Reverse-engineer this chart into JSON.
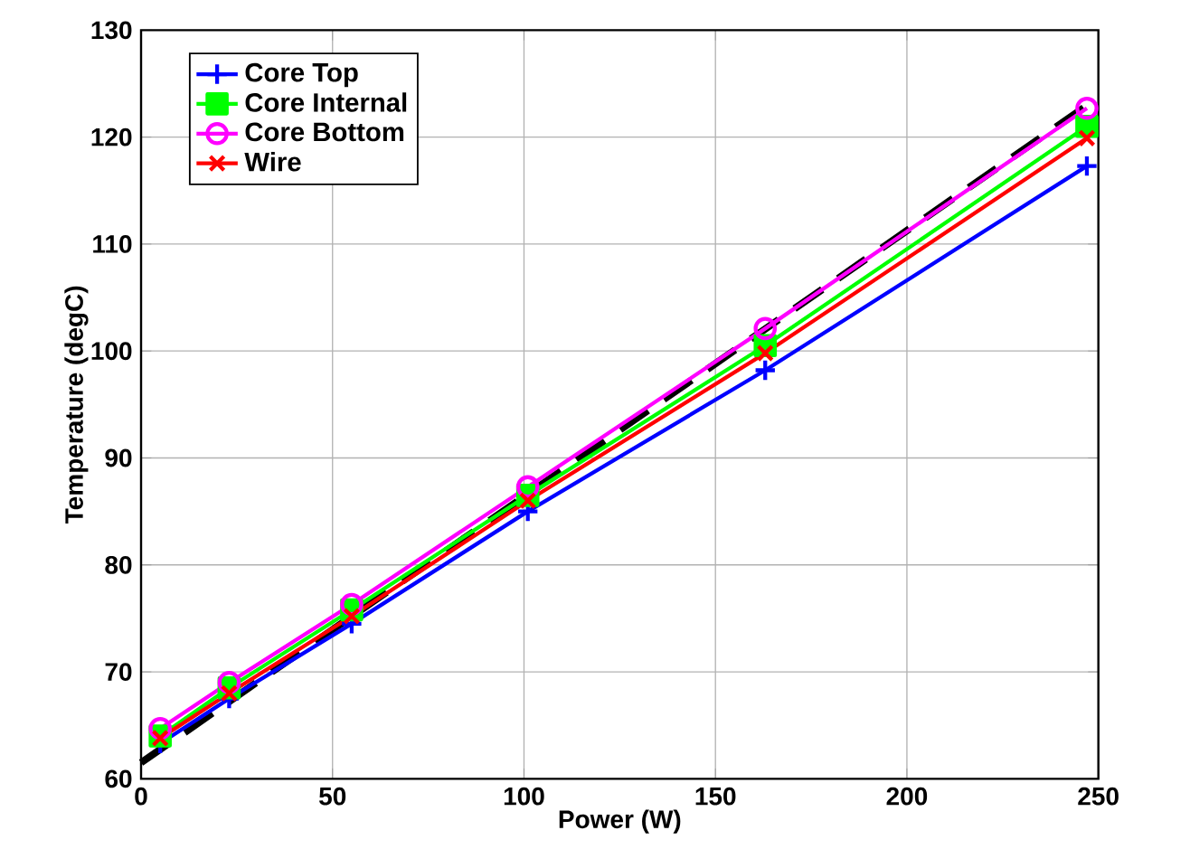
{
  "chart_data": {
    "type": "line",
    "xlabel": "Power (W)",
    "ylabel": "Temperature (degC)",
    "x": [
      5,
      23,
      55,
      101,
      163,
      247
    ],
    "series": [
      {
        "name": "Core Top",
        "color": "#0000ff",
        "marker": "plus",
        "values": [
          63.3,
          67.5,
          74.5,
          85,
          98.2,
          117.3
        ]
      },
      {
        "name": "Core Internal",
        "color": "#00ff00",
        "marker": "square",
        "values": [
          64,
          68.5,
          75.8,
          86.5,
          100.5,
          121
        ]
      },
      {
        "name": "Core Bottom",
        "color": "#ff00ff",
        "marker": "circle",
        "values": [
          64.7,
          69,
          76.3,
          87.3,
          102.1,
          122.7
        ]
      },
      {
        "name": "Wire",
        "color": "#ff0000",
        "marker": "cross",
        "values": [
          63.8,
          68,
          75.2,
          86,
          99.8,
          119.9
        ]
      },
      {
        "color": "#000000",
        "marker": "none",
        "line_style": "dashed",
        "x": [
          0,
          250
        ],
        "values": [
          61.5,
          123.7
        ]
      }
    ],
    "xlim": [
      0,
      250
    ],
    "ylim": [
      60,
      130
    ],
    "xticks": [
      0,
      50,
      100,
      150,
      200,
      250
    ],
    "yticks": [
      60,
      70,
      80,
      90,
      100,
      110,
      120,
      130
    ],
    "grid": true,
    "legend": "top left"
  }
}
